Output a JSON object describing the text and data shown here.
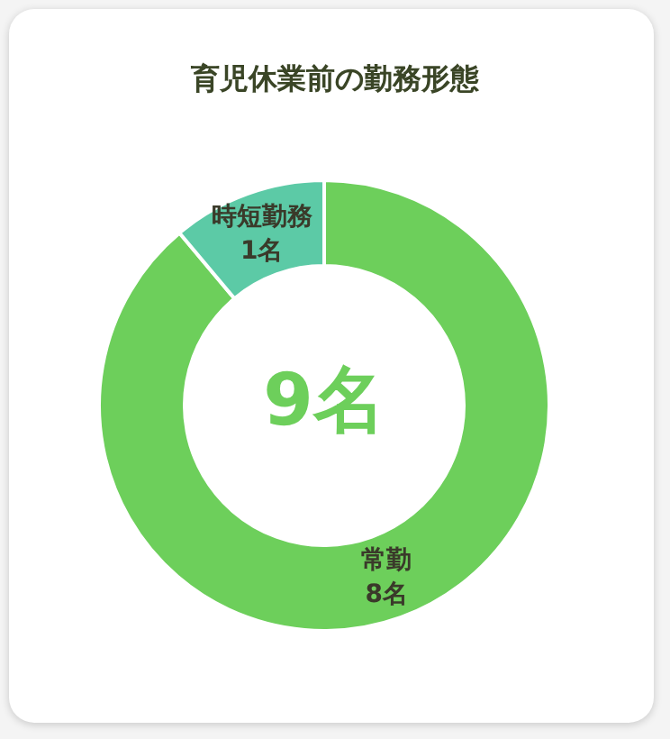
{
  "chart_data": {
    "type": "donut",
    "title": "育児休業前の勤務形態",
    "categories": [
      "常勤",
      "時短勤務"
    ],
    "values": [
      8,
      1
    ],
    "colors": [
      "#6dcf5b",
      "#5ccaa6"
    ],
    "value_labels": [
      "8名",
      "1名"
    ],
    "annotations": [
      "9名"
    ],
    "legend": false
  }
}
